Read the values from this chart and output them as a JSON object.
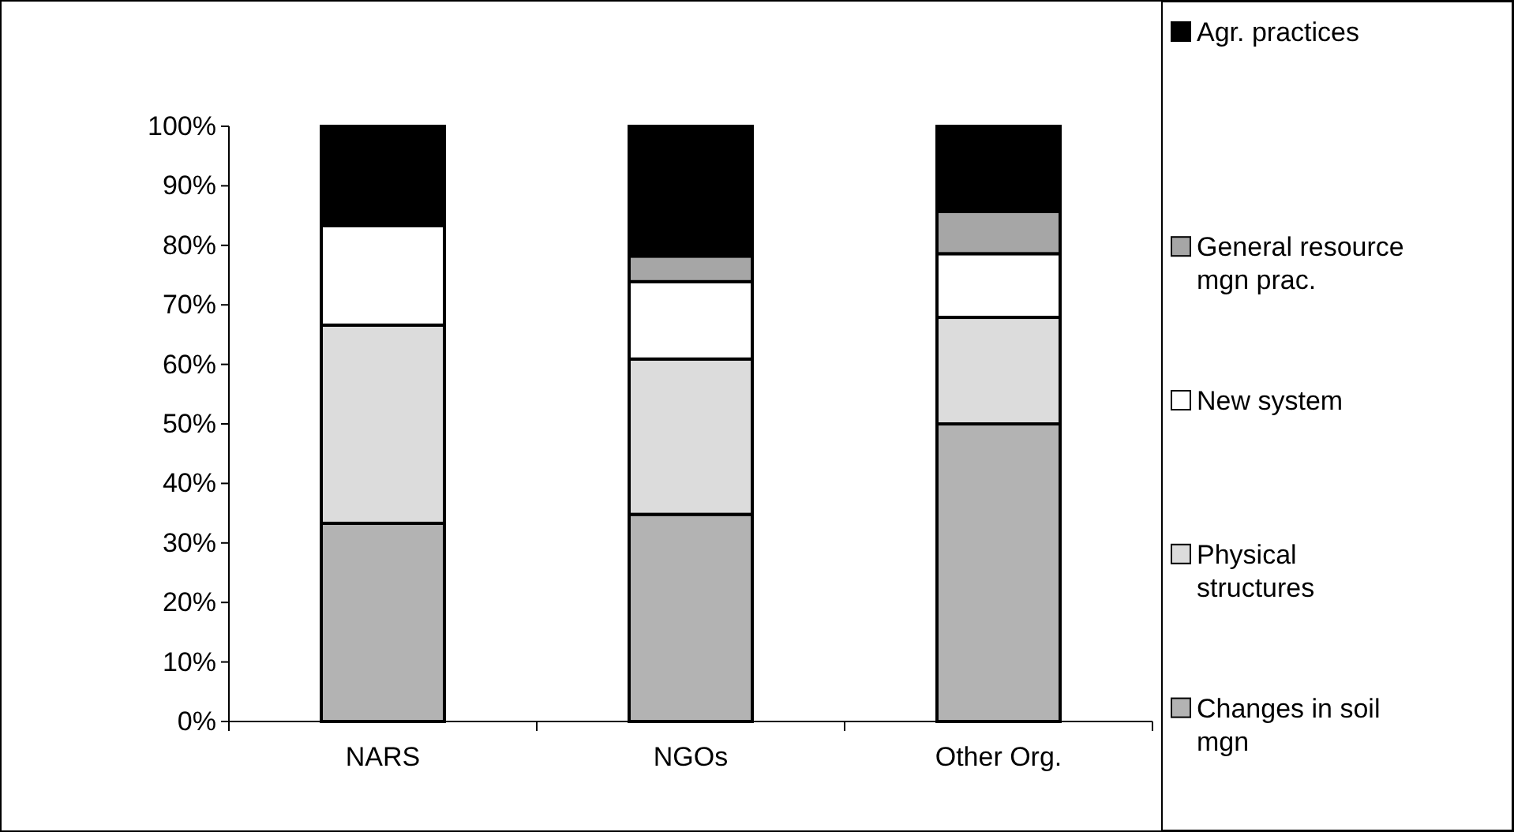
{
  "chart_data": {
    "type": "bar",
    "stacked": true,
    "categories": [
      "NARS",
      "NGOs",
      "Other Org."
    ],
    "series": [
      {
        "name": "Changes in soil mgn",
        "color": "#b3b3b3",
        "values": [
          33.3,
          34.8,
          50
        ]
      },
      {
        "name": "Physical structures",
        "color": "#dcdcdc",
        "values": [
          33.3,
          26.1,
          17.9
        ]
      },
      {
        "name": "New system",
        "color": "#ffffff",
        "values": [
          16.7,
          13,
          10.7
        ]
      },
      {
        "name": "General resource mgn prac.",
        "color": "#a6a6a6",
        "values": [
          0,
          4.3,
          7.1
        ]
      },
      {
        "name": "Agr. practices",
        "color": "#000000",
        "values": [
          16.7,
          21.8,
          14.3
        ]
      }
    ],
    "ylim": [
      0,
      100
    ],
    "yticks": [
      {
        "value": 0,
        "label": "0%"
      },
      {
        "value": 10,
        "label": "10%"
      },
      {
        "value": 20,
        "label": "20%"
      },
      {
        "value": 30,
        "label": "30%"
      },
      {
        "value": 40,
        "label": "40%"
      },
      {
        "value": 50,
        "label": "50%"
      },
      {
        "value": 60,
        "label": "60%"
      },
      {
        "value": 70,
        "label": "70%"
      },
      {
        "value": 80,
        "label": "80%"
      },
      {
        "value": 90,
        "label": "90%"
      },
      {
        "value": 100,
        "label": "100%"
      }
    ],
    "legend": "right"
  }
}
